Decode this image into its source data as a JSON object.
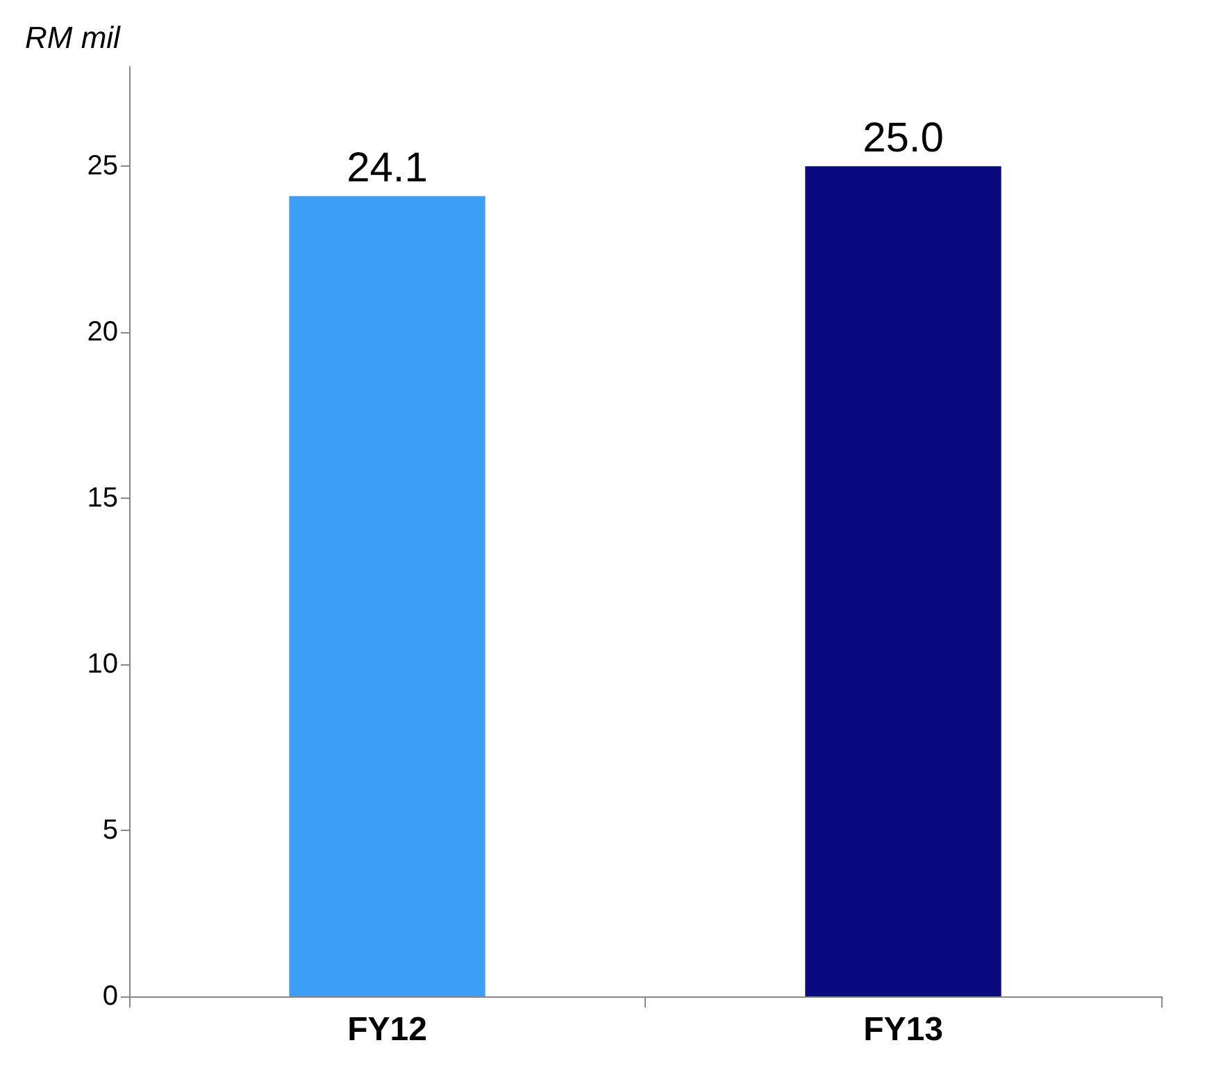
{
  "chart_data": {
    "type": "bar",
    "ylabel": "RM mil",
    "categories": [
      "FY12",
      "FY13"
    ],
    "values": [
      24.1,
      25.0
    ],
    "colors": [
      "#3d9ef5",
      "#0a0a80"
    ],
    "value_labels": [
      "24.1",
      "25.0"
    ],
    "ylim": [
      0,
      28
    ],
    "yticks": [
      0,
      5,
      10,
      15,
      20,
      25
    ],
    "grid": false
  }
}
